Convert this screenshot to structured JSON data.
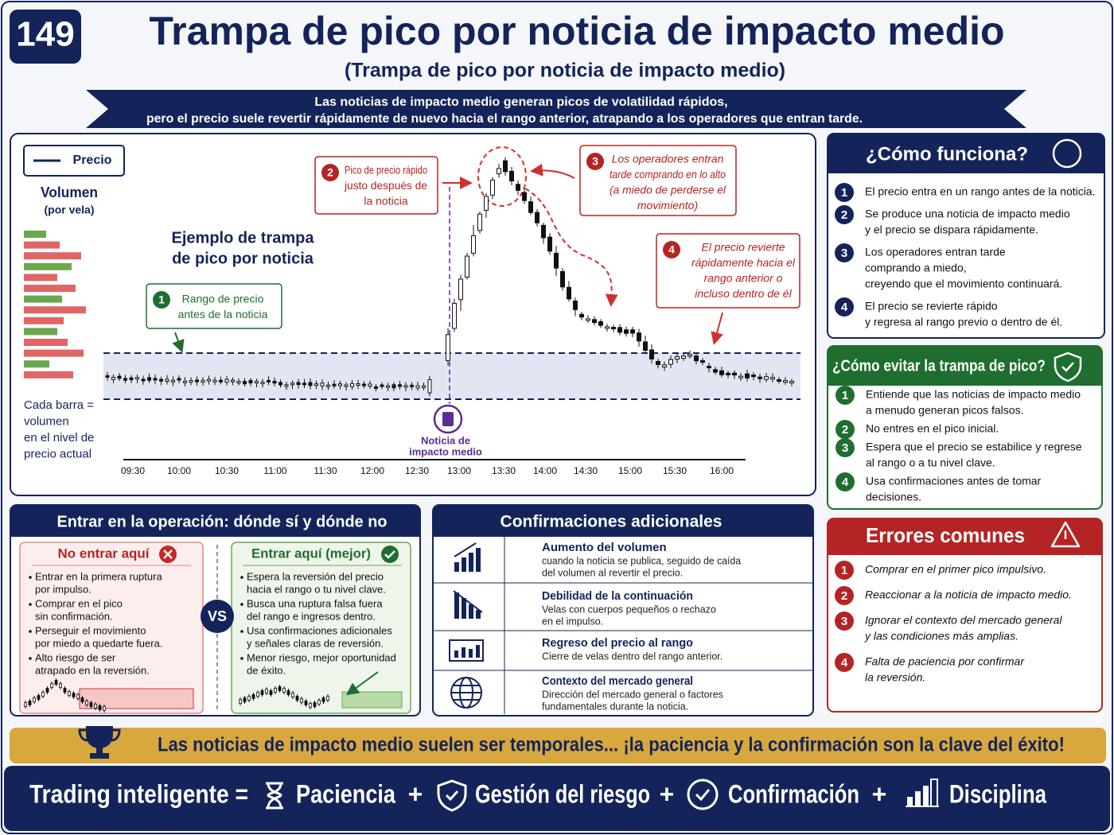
{
  "header": {
    "badge": "149",
    "title": "Trampa de pico por noticia de impacto medio",
    "subtitle": "(Trampa de pico por noticia de impacto medio)",
    "banner": [
      "Las noticias de impacto medio generan picos de volatilidad rápidos,",
      "pero el precio suele revertir rápidamente de nuevo hacia el rango anterior, atrapando a los operadores  que entran tarde."
    ]
  },
  "chart": {
    "legend": "Precio",
    "volume_title": "Volumen",
    "volume_subtitle": "(por vela)",
    "volume_note": [
      "Cada barra =",
      "volumen",
      "en el nivel de",
      "precio actual"
    ],
    "example_title": [
      "Ejemplo de trampa",
      "de pico por noticia"
    ],
    "callouts": [
      {
        "number": "1",
        "lines": [
          "Rango de precio",
          "antes de la noticia"
        ]
      },
      {
        "number": "2",
        "lines": [
          "Pico de precio rápido",
          "justo después de",
          "la noticia"
        ]
      },
      {
        "number": "3",
        "lines": [
          "Los operadores entran",
          "tarde comprando en lo alto",
          "(a miedo de perderse el",
          "movimiento)"
        ]
      },
      {
        "number": "4",
        "lines": [
          "El precio revierte",
          "rápidamente hacia el",
          "rango anterior o",
          "incluso dentro de él"
        ]
      }
    ],
    "news_label": [
      "Noticia de",
      "impacto medio"
    ],
    "times": [
      "09:30",
      "10:00",
      "10:30",
      "11:00",
      "11:30",
      "12:00",
      "12:30",
      "13:00",
      "13:30",
      "14:00",
      "14:30",
      "15:00",
      "15:30",
      "16:00"
    ]
  },
  "how": {
    "title": "¿Cómo funciona?",
    "items": [
      {
        "number": "1",
        "lines": [
          "El precio entra en un rango antes de la noticia."
        ]
      },
      {
        "number": "2",
        "lines": [
          "Se produce una noticia de impacto medio",
          "y el precio se dispara rápidamente."
        ]
      },
      {
        "number": "3",
        "lines": [
          "Los operadores entran tarde",
          "comprando a miedo,",
          "creyendo que el movimiento continuará."
        ]
      },
      {
        "number": "4",
        "lines": [
          "El precio se revierte rápido",
          "y regresa al rango previo o dentro de él."
        ]
      }
    ]
  },
  "avoid": {
    "title": "¿Cómo evitar la trampa de pico?",
    "items": [
      {
        "number": "1",
        "lines": [
          "Entiende que las noticias de impacto medio",
          "a menudo generan picos falsos."
        ]
      },
      {
        "number": "2",
        "lines": [
          "No entres en el pico inicial."
        ]
      },
      {
        "number": "3",
        "lines": [
          "Espera que el precio se estabilice y regrese",
          "al rango o a tu nivel clave."
        ]
      },
      {
        "number": "4",
        "lines": [
          "Usa confirmaciones antes de tomar",
          "decisiones."
        ]
      }
    ]
  },
  "errors": {
    "title": "Errores comunes",
    "items": [
      {
        "number": "1",
        "lines": [
          "Comprar en el primer pico impulsivo."
        ]
      },
      {
        "number": "2",
        "lines": [
          "Reaccionar a la noticia de impacto medio."
        ]
      },
      {
        "number": "3",
        "lines": [
          "Ignorar el contexto del mercado general",
          "y las condiciones más amplias."
        ]
      },
      {
        "number": "4",
        "lines": [
          "Falta de paciencia por confirmar",
          "la reversión."
        ]
      }
    ]
  },
  "entry": {
    "title": "Entrar en la operación: dónde sí y dónde no",
    "vs": "VS",
    "bad": {
      "title": "No entrar aquí",
      "items": [
        [
          "Entrar en la primera ruptura",
          "por impulso."
        ],
        [
          "Comprar en el pico",
          "sin confirmación."
        ],
        [
          "Perseguir el movimiento",
          "por miedo a quedarte fuera."
        ],
        [
          "Alto riesgo de ser",
          "atrapado en la reversión."
        ]
      ]
    },
    "good": {
      "title": "Entrar aquí (mejor)",
      "items": [
        [
          "Espera la reversión del precio",
          "hacia el rango o tu nivel clave."
        ],
        [
          "Busca una ruptura falsa fuera",
          "del rango e ingresos dentro."
        ],
        [
          "Usa confirmaciones adicionales",
          "y señales claras de reversión."
        ],
        [
          "Menor riesgo, mejor oportunidad",
          "de éxito."
        ]
      ]
    }
  },
  "confirm": {
    "title": "Confirmaciones adicionales",
    "items": [
      {
        "title": "Aumento del volumen",
        "lines": [
          "cuando la noticia se publica, seguido de caída",
          "del volumen al revertir el precio."
        ]
      },
      {
        "title": "Debilidad de la continuación",
        "lines": [
          "Velas con cuerpos pequeños o rechazo",
          "en el impulso."
        ]
      },
      {
        "title": "Regreso del precio al rango",
        "lines": [
          "Cierre de velas dentro del rango anterior."
        ]
      },
      {
        "title": "Contexto del mercado general",
        "lines": [
          "Dirección del mercado general o factores",
          "fundamentales durante la noticia."
        ]
      }
    ]
  },
  "tip": "Las noticias de impacto medio suelen ser temporales... ¡la paciencia y la confirmación son la clave del éxito!",
  "footer": [
    "Trading inteligente =",
    "Paciencia",
    "+",
    "Gestión del riesgo",
    "+",
    "Confirmación",
    "+",
    "Disciplina"
  ]
}
